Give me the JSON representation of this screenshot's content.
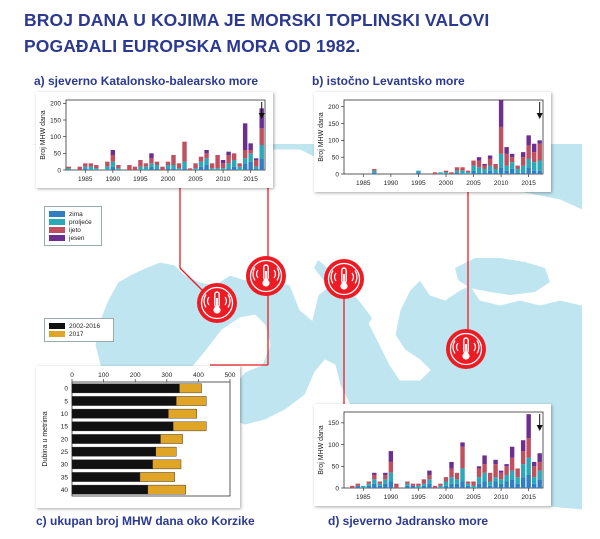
{
  "title": {
    "line1": "BROJ DANA U KOJIMA JE MORSKI TOPLINSKI VALOVI",
    "line2": "POGAĐALI EUROPSKA MORA OD 1982."
  },
  "legend_seasons": [
    {
      "label": "zima",
      "color": "#2f7fc1"
    },
    {
      "label": "proljeće",
      "color": "#2aa9b8"
    },
    {
      "label": "ljeto",
      "color": "#c0505f"
    },
    {
      "label": "jesen",
      "color": "#6b2f8f"
    }
  ],
  "legend_years": [
    {
      "label": "2002-2016",
      "color": "#111111"
    },
    {
      "label": "2017",
      "color": "#e0a526"
    }
  ],
  "icons": {
    "pin": "thermometer-heatwave-icon"
  },
  "chart_data": [
    {
      "type": "bar",
      "caption": "a) sjeverno Katalonsko-balearsko more",
      "ylabel": "Broj MHW dana",
      "xlabel": "",
      "x_ticks": [
        "1985",
        "1990",
        "1995",
        "2000",
        "2005",
        "2010",
        "2015"
      ],
      "y_ticks": [
        "0",
        "50",
        "100",
        "150",
        "200"
      ],
      "ylim": [
        0,
        210
      ],
      "xlim": [
        1981.5,
        2017.6
      ],
      "stacked": true,
      "arrow_year": 2017,
      "x": [
        1982,
        1983,
        1984,
        1985,
        1986,
        1987,
        1988,
        1989,
        1990,
        1991,
        1992,
        1993,
        1994,
        1995,
        1996,
        1997,
        1998,
        1999,
        2000,
        2001,
        2002,
        2003,
        2004,
        2005,
        2006,
        2007,
        2008,
        2009,
        2010,
        2011,
        2012,
        2013,
        2014,
        2015,
        2016,
        2017
      ],
      "series": [
        {
          "name": "zima",
          "values": [
            0,
            0,
            0,
            5,
            0,
            0,
            0,
            0,
            10,
            0,
            0,
            0,
            0,
            0,
            0,
            10,
            5,
            0,
            5,
            5,
            0,
            5,
            0,
            0,
            10,
            15,
            0,
            0,
            0,
            5,
            10,
            0,
            20,
            25,
            5,
            35
          ]
        },
        {
          "name": "proljeće",
          "values": [
            5,
            0,
            0,
            5,
            10,
            5,
            0,
            10,
            15,
            5,
            0,
            0,
            0,
            10,
            10,
            10,
            10,
            0,
            10,
            10,
            5,
            20,
            0,
            5,
            15,
            20,
            5,
            5,
            5,
            15,
            20,
            10,
            15,
            25,
            5,
            40
          ]
        },
        {
          "name": "ljeto",
          "values": [
            5,
            0,
            10,
            10,
            10,
            10,
            0,
            15,
            20,
            10,
            0,
            15,
            10,
            20,
            10,
            15,
            10,
            10,
            10,
            30,
            15,
            60,
            5,
            15,
            15,
            15,
            15,
            40,
            15,
            25,
            20,
            10,
            25,
            10,
            20,
            50
          ]
        },
        {
          "name": "jesen",
          "values": [
            0,
            0,
            0,
            0,
            0,
            0,
            0,
            0,
            15,
            0,
            0,
            0,
            0,
            0,
            0,
            15,
            0,
            0,
            0,
            0,
            0,
            0,
            0,
            0,
            0,
            10,
            0,
            0,
            10,
            10,
            0,
            0,
            80,
            20,
            5,
            60
          ]
        }
      ]
    },
    {
      "type": "bar",
      "caption": "b) istočno Levantsko more",
      "ylabel": "Broj MHW dana",
      "xlabel": "",
      "x_ticks": [
        "1985",
        "1990",
        "1995",
        "2000",
        "2005",
        "2010",
        "2015"
      ],
      "y_ticks": [
        "0",
        "50",
        "100",
        "150",
        "200"
      ],
      "ylim": [
        0,
        220
      ],
      "xlim": [
        1981.5,
        2017.6
      ],
      "stacked": true,
      "arrow_year": 2017,
      "x": [
        1982,
        1983,
        1984,
        1985,
        1986,
        1987,
        1988,
        1989,
        1990,
        1991,
        1992,
        1993,
        1994,
        1995,
        1996,
        1997,
        1998,
        1999,
        2000,
        2001,
        2002,
        2003,
        2004,
        2005,
        2006,
        2007,
        2008,
        2009,
        2010,
        2011,
        2012,
        2013,
        2014,
        2015,
        2016,
        2017
      ],
      "series": [
        {
          "name": "zima",
          "values": [
            0,
            0,
            0,
            0,
            0,
            5,
            0,
            0,
            0,
            0,
            0,
            0,
            0,
            5,
            0,
            0,
            0,
            0,
            0,
            0,
            5,
            0,
            0,
            10,
            5,
            5,
            10,
            5,
            20,
            10,
            15,
            5,
            5,
            20,
            10,
            10
          ]
        },
        {
          "name": "proljeće",
          "values": [
            0,
            0,
            0,
            0,
            0,
            5,
            0,
            0,
            0,
            0,
            0,
            0,
            0,
            5,
            0,
            0,
            0,
            5,
            5,
            0,
            5,
            10,
            5,
            15,
            15,
            10,
            15,
            10,
            40,
            15,
            20,
            10,
            20,
            25,
            25,
            30
          ]
        },
        {
          "name": "ljeto",
          "values": [
            0,
            0,
            0,
            0,
            0,
            5,
            0,
            0,
            0,
            0,
            0,
            0,
            0,
            0,
            0,
            0,
            5,
            0,
            5,
            5,
            10,
            10,
            5,
            15,
            20,
            10,
            20,
            15,
            80,
            35,
            15,
            10,
            25,
            40,
            30,
            50
          ]
        },
        {
          "name": "jesen",
          "values": [
            0,
            0,
            0,
            0,
            0,
            0,
            0,
            0,
            0,
            0,
            0,
            0,
            0,
            0,
            0,
            0,
            0,
            0,
            0,
            0,
            0,
            0,
            0,
            0,
            10,
            5,
            10,
            0,
            80,
            20,
            10,
            0,
            15,
            30,
            25,
            10
          ]
        }
      ]
    },
    {
      "type": "bar",
      "caption": "c) ukupan broj MHW dana oko Korzike",
      "orientation": "horizontal",
      "ylabel": "Dubina u metrima",
      "xlabel": "",
      "x_ticks": [
        "0",
        "100",
        "200",
        "300",
        "400",
        "500"
      ],
      "xlim": [
        0,
        500
      ],
      "categories": [
        "0",
        "5",
        "10",
        "15",
        "20",
        "25",
        "30",
        "35",
        "40"
      ],
      "series": [
        {
          "name": "2002-2016",
          "values": [
            340,
            330,
            305,
            320,
            280,
            265,
            255,
            215,
            240
          ]
        },
        {
          "name": "2017",
          "values": [
            70,
            95,
            90,
            105,
            70,
            65,
            90,
            110,
            120
          ]
        }
      ]
    },
    {
      "type": "bar",
      "caption": "d) sjeverno Jadransko more",
      "ylabel": "Broj MHW dana",
      "xlabel": "",
      "x_ticks": [
        "1985",
        "1990",
        "1995",
        "2000",
        "2005",
        "2010",
        "2015"
      ],
      "y_ticks": [
        "0",
        "50",
        "100",
        "150"
      ],
      "ylim": [
        0,
        175
      ],
      "xlim": [
        1981.5,
        2017.6
      ],
      "stacked": true,
      "arrow_year": 2017,
      "x": [
        1982,
        1983,
        1984,
        1985,
        1986,
        1987,
        1988,
        1989,
        1990,
        1991,
        1992,
        1993,
        1994,
        1995,
        1996,
        1997,
        1998,
        1999,
        2000,
        2001,
        2002,
        2003,
        2004,
        2005,
        2006,
        2007,
        2008,
        2009,
        2010,
        2011,
        2012,
        2013,
        2014,
        2015,
        2016,
        2017
      ],
      "series": [
        {
          "name": "zima",
          "values": [
            0,
            0,
            5,
            0,
            5,
            10,
            5,
            10,
            15,
            0,
            0,
            5,
            5,
            0,
            5,
            10,
            0,
            0,
            5,
            10,
            10,
            15,
            5,
            0,
            10,
            15,
            5,
            15,
            10,
            15,
            20,
            10,
            25,
            30,
            10,
            20
          ]
        },
        {
          "name": "proljeće",
          "values": [
            0,
            0,
            0,
            5,
            5,
            10,
            5,
            10,
            20,
            0,
            0,
            5,
            0,
            5,
            5,
            10,
            0,
            5,
            10,
            15,
            10,
            30,
            5,
            5,
            15,
            20,
            10,
            10,
            10,
            15,
            20,
            15,
            30,
            40,
            15,
            20
          ]
        },
        {
          "name": "ljeto",
          "values": [
            0,
            5,
            5,
            0,
            5,
            10,
            5,
            10,
            25,
            10,
            0,
            5,
            5,
            5,
            10,
            10,
            5,
            5,
            10,
            20,
            15,
            50,
            5,
            10,
            20,
            20,
            20,
            30,
            15,
            20,
            30,
            20,
            30,
            45,
            25,
            20
          ]
        },
        {
          "name": "jesen",
          "values": [
            0,
            0,
            0,
            0,
            0,
            5,
            0,
            5,
            25,
            0,
            0,
            0,
            0,
            0,
            0,
            10,
            0,
            0,
            0,
            15,
            0,
            10,
            0,
            0,
            5,
            20,
            0,
            10,
            5,
            5,
            25,
            0,
            25,
            55,
            10,
            20
          ]
        }
      ]
    }
  ]
}
